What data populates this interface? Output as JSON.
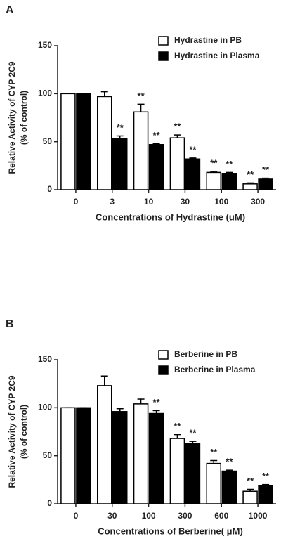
{
  "chart_data": [
    {
      "type": "bar",
      "panel": "A",
      "xlabel": "Concentrations of Hydrastine (uM)",
      "ylabel": [
        "Relative Activity of CYP 2C9",
        "(% of control)"
      ],
      "categories": [
        "0",
        "3",
        "10",
        "30",
        "100",
        "300"
      ],
      "series": [
        {
          "name": "Hydrastine in PB",
          "color": "#ffffff",
          "values": [
            100,
            97,
            81,
            54,
            18,
            6
          ],
          "errors": [
            0,
            5,
            8,
            3,
            1,
            1
          ],
          "annotations": [
            null,
            null,
            "**",
            "**",
            "**",
            "**"
          ]
        },
        {
          "name": "Hydrastine in Plasma",
          "color": "#000000",
          "values": [
            100,
            53,
            47,
            32,
            17,
            11
          ],
          "errors": [
            0,
            3,
            1,
            1,
            1,
            1
          ],
          "annotations": [
            null,
            "**",
            "**",
            "**",
            "**",
            "**"
          ]
        }
      ],
      "ylim": [
        0,
        150
      ],
      "yticks": [
        0,
        50,
        100,
        150
      ]
    },
    {
      "type": "bar",
      "panel": "B",
      "xlabel": "Concentrations of Berberine( μM)",
      "ylabel": [
        "Relative Activity of CYP 2C9",
        "(% of control)"
      ],
      "categories": [
        "0",
        "30",
        "100",
        "300",
        "600",
        "1000"
      ],
      "series": [
        {
          "name": "Berberine in PB",
          "color": "#ffffff",
          "values": [
            100,
            123,
            104,
            68,
            42,
            13
          ],
          "errors": [
            0,
            10,
            5,
            4,
            3,
            2
          ],
          "annotations": [
            null,
            null,
            null,
            "**",
            "**",
            "**"
          ]
        },
        {
          "name": "Berberine in Plasma",
          "color": "#000000",
          "values": [
            100,
            96,
            94,
            63,
            34,
            19
          ],
          "errors": [
            0,
            3,
            3,
            2,
            1,
            1
          ],
          "annotations": [
            null,
            null,
            "**",
            "**",
            "**",
            "**"
          ]
        }
      ],
      "ylim": [
        0,
        150
      ],
      "yticks": [
        0,
        50,
        100,
        150
      ]
    }
  ]
}
